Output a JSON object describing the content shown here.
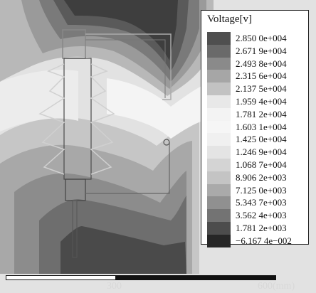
{
  "legend": {
    "title": "Voltage[v]",
    "entries": [
      {
        "label": "2.850 0e+004",
        "color": "#4f4f4f"
      },
      {
        "label": "2.671 9e+004",
        "color": "#6a6a6a"
      },
      {
        "label": "2.493 8e+004",
        "color": "#8a8a8a"
      },
      {
        "label": "2.315 6e+004",
        "color": "#a6a6a6"
      },
      {
        "label": "2.137 5e+004",
        "color": "#c2c2c2"
      },
      {
        "label": "1.959 4e+004",
        "color": "#e8e8e8"
      },
      {
        "label": "1.781 2e+004",
        "color": "#f3f3f3"
      },
      {
        "label": "1.603 1e+004",
        "color": "#f6f6f6"
      },
      {
        "label": "1.425 0e+004",
        "color": "#f0f0f0"
      },
      {
        "label": "1.246 9e+004",
        "color": "#e4e4e4"
      },
      {
        "label": "1.068 7e+004",
        "color": "#d4d4d4"
      },
      {
        "label": "8.906 2e+003",
        "color": "#c4c4c4"
      },
      {
        "label": "7.125 0e+003",
        "color": "#aaaaaa"
      },
      {
        "label": "5.343 7e+003",
        "color": "#909090"
      },
      {
        "label": "3.562 4e+003",
        "color": "#737373"
      },
      {
        "label": "1.781 2e+003",
        "color": "#4c4c4c"
      },
      {
        "label": "−6.167 4e−002",
        "color": "#262626"
      }
    ]
  },
  "scale": {
    "label_mid": "300",
    "label_end": "600(mm)"
  }
}
